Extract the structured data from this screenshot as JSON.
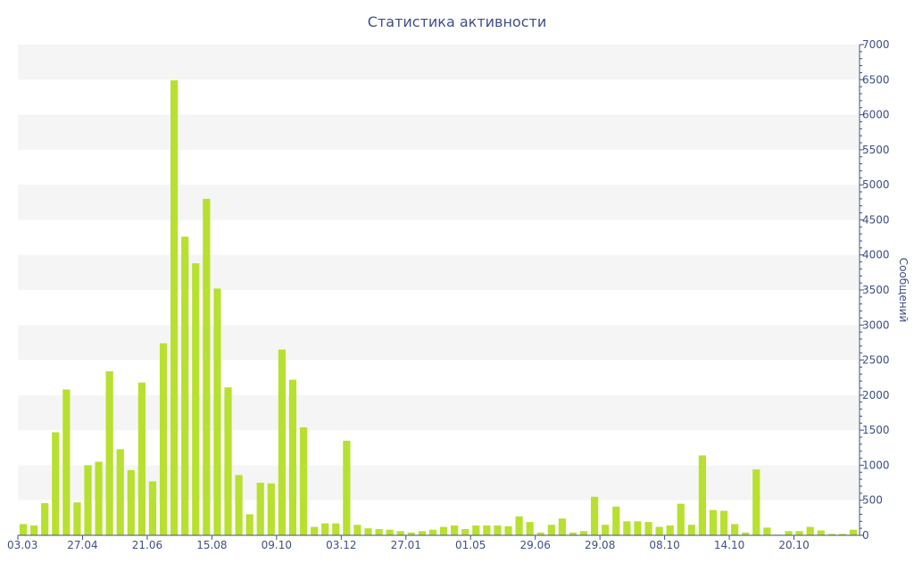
{
  "chart_data": {
    "type": "bar",
    "title": "Статистика активности",
    "ylabel": "Сообщений",
    "xlabel": "",
    "y_axis_side": "right",
    "ylim": [
      0,
      7000
    ],
    "y_ticks": [
      0,
      500,
      1000,
      1500,
      2000,
      2500,
      3000,
      3500,
      4000,
      4500,
      5000,
      5500,
      6000,
      6500,
      7000
    ],
    "x_tick_labels": [
      "03.03",
      "27.04",
      "21.06",
      "15.08",
      "09.10",
      "03.12",
      "27.01",
      "01.05",
      "29.06",
      "29.08",
      "08.10",
      "14.10",
      "20.10"
    ],
    "x_tick_label_bars": [
      0,
      6,
      12,
      18,
      24,
      30,
      36,
      42,
      48,
      54,
      60,
      66,
      72
    ],
    "bar_color": "#b8e030",
    "grid": "alternating horizontal bands",
    "values": [
      160,
      140,
      460,
      1470,
      2080,
      470,
      1000,
      1050,
      2340,
      1230,
      930,
      2180,
      770,
      2740,
      6490,
      4260,
      3880,
      4800,
      3520,
      2110,
      860,
      300,
      750,
      740,
      2650,
      2220,
      1540,
      120,
      170,
      170,
      1350,
      150,
      100,
      90,
      80,
      60,
      40,
      60,
      80,
      120,
      140,
      90,
      140,
      140,
      140,
      130,
      270,
      190,
      40,
      150,
      240,
      40,
      60,
      550,
      150,
      410,
      200,
      200,
      190,
      120,
      140,
      450,
      150,
      1140,
      360,
      350,
      160,
      40,
      940,
      110,
      10,
      60,
      60,
      120,
      70,
      20,
      20,
      80
    ]
  }
}
